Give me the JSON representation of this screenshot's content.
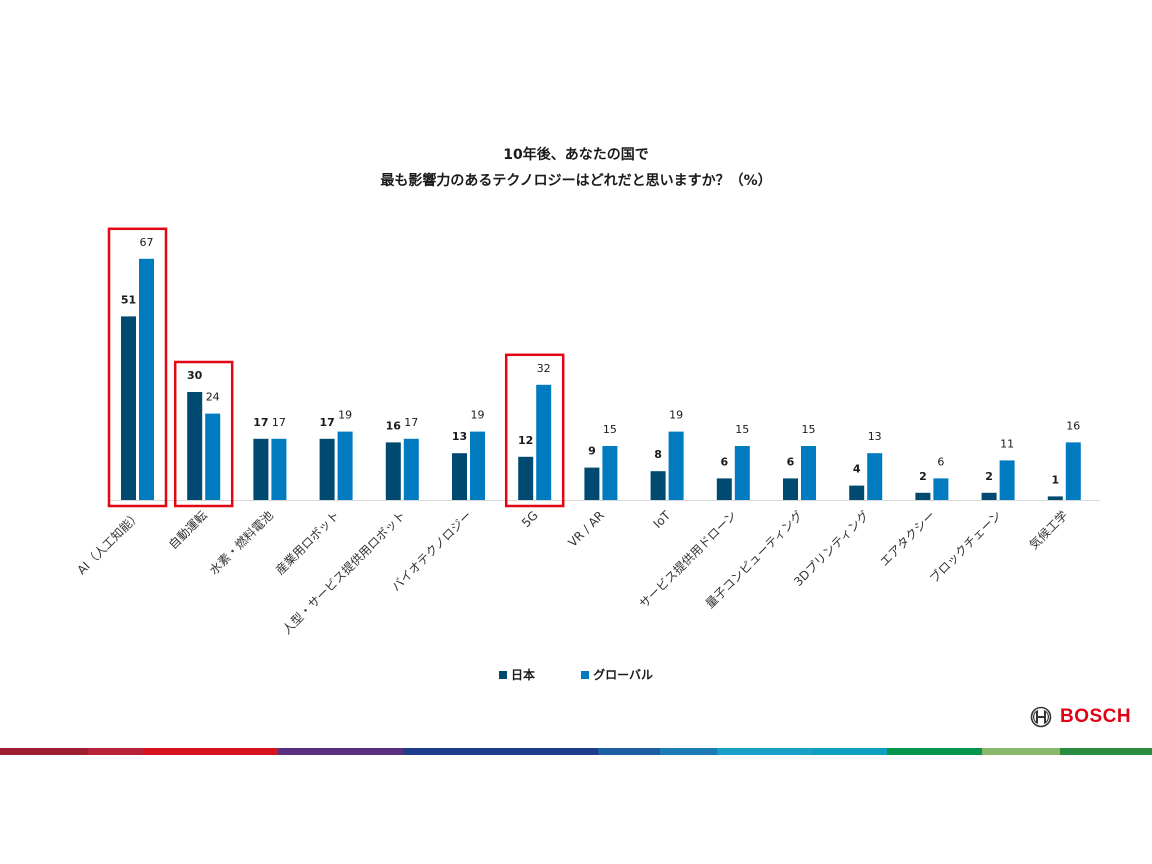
{
  "title_line1": "10年後、あなたの国で",
  "title_line2": "最も影響力のあるテクノロジーはどれだと思いますか？（%）",
  "legend": [
    {
      "label": "日本",
      "color": "#004a72"
    },
    {
      "label": "グローバル",
      "color": "#007bc0"
    }
  ],
  "brand": {
    "name": "BOSCH",
    "color": "#e20015"
  },
  "highlight_color": "#e30613",
  "chart_data": {
    "type": "bar",
    "title": "10年後、あなたの国で 最も影響力のあるテクノロジーはどれだと思いますか？（%）",
    "categories": [
      "AI（人工知能）",
      "自動運転",
      "水素・燃料電池",
      "産業用ロボット",
      "人型・サービス提供用ロボット",
      "バイオテクノロジー",
      "5G",
      "VR / AR",
      "IoT",
      "サービス提供用ドローン",
      "量子コンピューティング",
      "3Dプリンティング",
      "エアタクシー",
      "ブロックチェーン",
      "気候工学"
    ],
    "series": [
      {
        "name": "日本",
        "color": "#004a72",
        "values": [
          51,
          30,
          17,
          17,
          16,
          13,
          12,
          9,
          8,
          6,
          6,
          4,
          2,
          2,
          1
        ]
      },
      {
        "name": "グローバル",
        "color": "#007bc0",
        "values": [
          67,
          24,
          17,
          19,
          17,
          19,
          32,
          15,
          19,
          15,
          15,
          13,
          6,
          11,
          16
        ]
      }
    ],
    "highlighted_categories": [
      "AI（人工知能）",
      "自動運転",
      "5G"
    ],
    "ylim": [
      0,
      70
    ],
    "grid": false,
    "legend_position": "bottom-center"
  }
}
